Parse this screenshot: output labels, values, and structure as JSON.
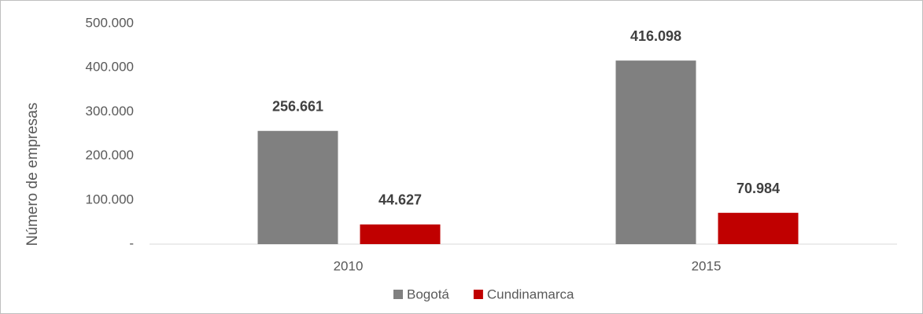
{
  "chart_data": {
    "type": "bar",
    "y_label": "Número de empresas",
    "categories": [
      "2010",
      "2015"
    ],
    "series": [
      {
        "name": "Bogotá",
        "color": "#808080",
        "values": [
          256661,
          416098
        ],
        "value_labels": [
          "256.661",
          "416.098"
        ]
      },
      {
        "name": "Cundinamarca",
        "color": "#c00000",
        "values": [
          44627,
          70984
        ],
        "value_labels": [
          "44.627",
          "70.984"
        ]
      }
    ],
    "ylim": [
      0,
      500000
    ],
    "yticks": [
      {
        "value": 0,
        "label": "-"
      },
      {
        "value": 100000,
        "label": "100.000"
      },
      {
        "value": 200000,
        "label": "200.000"
      },
      {
        "value": 300000,
        "label": "300.000"
      },
      {
        "value": 400000,
        "label": "400.000"
      },
      {
        "value": 500000,
        "label": "500.000"
      }
    ],
    "grid": false,
    "legend": "bottom"
  }
}
